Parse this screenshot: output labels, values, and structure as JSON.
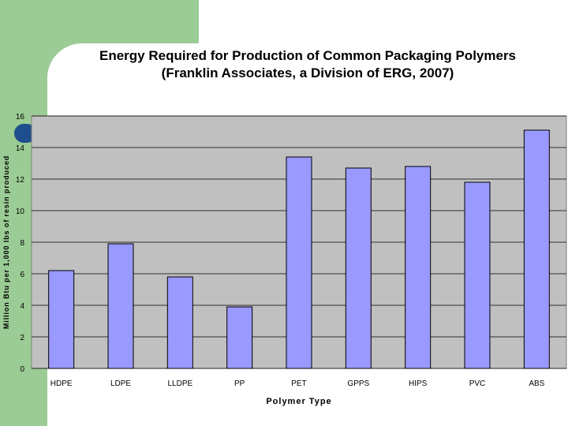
{
  "chart_data": {
    "type": "bar",
    "title": "Energy Required for Production of Common Packaging Polymers",
    "subtitle": "(Franklin Associates, a Division of ERG, 2007)",
    "xlabel": "Polymer Type",
    "ylabel": "Million Btu per 1,000 lbs of resin produced",
    "categories": [
      "HDPE",
      "LDPE",
      "LLDPE",
      "PP",
      "PET",
      "GPPS",
      "HIPS",
      "PVC",
      "ABS"
    ],
    "values": [
      6.2,
      7.9,
      5.8,
      3.9,
      13.4,
      12.7,
      12.8,
      11.8,
      15.1
    ],
    "ylim": [
      0,
      16
    ],
    "yticks": [
      0,
      2,
      4,
      6,
      8,
      10,
      12,
      14,
      16
    ],
    "grid": true,
    "legend": "none",
    "colors": {
      "bar_fill": "#9999ff",
      "plot_background": "#c0c0c0",
      "slide_green": "#9ccc95",
      "bullet": "#1f4e8c"
    }
  }
}
